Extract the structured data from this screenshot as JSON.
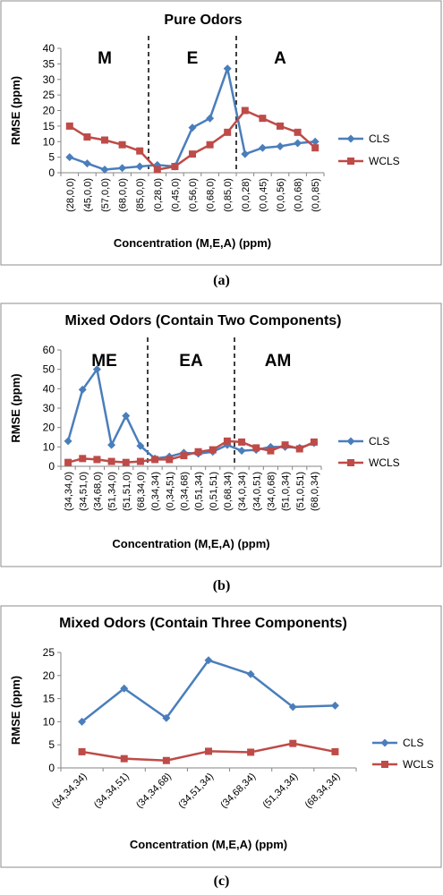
{
  "captions": [
    "(a)",
    "(b)",
    "(c)"
  ],
  "chart_data": [
    {
      "type": "line",
      "title": "Pure Odors",
      "xlabel": "Concentration (M,E,A) (ppm)",
      "ylabel": "RMSE (ppm)",
      "ylim": [
        0,
        40
      ],
      "ytick_step": 5,
      "grid": false,
      "legend_position": "right",
      "categories": [
        "(28,0,0)",
        "(45,0,0)",
        "(57,0,0)",
        "(68,0,0)",
        "(85,0,0)",
        "(0,28,0)",
        "(0,45,0)",
        "(0,56,0)",
        "(0,68,0)",
        "(0,85,0)",
        "(0,0,28)",
        "(0,0,45)",
        "(0,0,56)",
        "(0,0,68)",
        "(0,0,85)"
      ],
      "separators_after": [
        4,
        9
      ],
      "groups": [
        "M",
        "E",
        "A"
      ],
      "series": [
        {
          "name": "CLS",
          "color": "#4a7ebb",
          "marker": "diamond",
          "values": [
            5,
            3,
            1,
            1.5,
            2,
            2.5,
            2,
            14.5,
            17.5,
            33.5,
            6,
            8,
            8.5,
            9.5,
            10
          ]
        },
        {
          "name": "WCLS",
          "color": "#be4b48",
          "marker": "square",
          "values": [
            15,
            11.5,
            10.5,
            9,
            7,
            1,
            2,
            6,
            9,
            13,
            20,
            17.5,
            15,
            13,
            8
          ]
        }
      ]
    },
    {
      "type": "line",
      "title": "Mixed Odors (Contain Two Components)",
      "xlabel": "Concentration (M,E,A) (ppm)",
      "ylabel": "RMSE (ppm)",
      "ylim": [
        0,
        60
      ],
      "ytick_step": 10,
      "grid": false,
      "legend_position": "right",
      "categories": [
        "(34,34,0)",
        "(34,51,0)",
        "(34,68,0)",
        "(51,34,0)",
        "(51,51,0)",
        "(68,34,0)",
        "(0,34,34)",
        "(0,34,51)",
        "(0,34,68)",
        "(0,51,34)",
        "(0,51,51)",
        "(0,68,34)",
        "(34,0,34)",
        "(34,0,51)",
        "(34,0,68)",
        "(51,0,34)",
        "(51,0,51)",
        "(68,0,34)"
      ],
      "separators_after": [
        5,
        11
      ],
      "groups": [
        "ME",
        "EA",
        "AM"
      ],
      "series": [
        {
          "name": "CLS",
          "color": "#4a7ebb",
          "marker": "diamond",
          "values": [
            13,
            39.5,
            50,
            11,
            26,
            10.5,
            4,
            5,
            7,
            6.5,
            7.5,
            11,
            8,
            8.5,
            10,
            10,
            9.5,
            12
          ]
        },
        {
          "name": "WCLS",
          "color": "#be4b48",
          "marker": "square",
          "values": [
            2,
            4,
            3.5,
            2.5,
            2,
            2.5,
            3.5,
            3.5,
            5.5,
            7.5,
            8.5,
            13,
            12.5,
            9.5,
            8,
            11,
            9,
            12.5
          ]
        }
      ]
    },
    {
      "type": "line",
      "title": "Mixed Odors (Contain Three Components)",
      "xlabel": "Concentration (M,E,A) (ppm)",
      "ylabel": "RMSE (ppm)",
      "ylim": [
        0,
        25
      ],
      "ytick_step": 5,
      "grid": false,
      "legend_position": "right",
      "categories": [
        "(34,34,34)",
        "(34,34,51)",
        "(34,34,68)",
        "(34,51,34)",
        "(34,68,34)",
        "(51,34,34)",
        "(68,34,34)"
      ],
      "separators_after": [],
      "groups": [],
      "series": [
        {
          "name": "CLS",
          "color": "#4a7ebb",
          "marker": "diamond",
          "values": [
            10,
            17.2,
            10.8,
            23.3,
            20.3,
            13.2,
            13.5
          ]
        },
        {
          "name": "WCLS",
          "color": "#be4b48",
          "marker": "square",
          "values": [
            3.5,
            2,
            1.6,
            3.6,
            3.4,
            5.3,
            3.5
          ]
        }
      ]
    }
  ]
}
